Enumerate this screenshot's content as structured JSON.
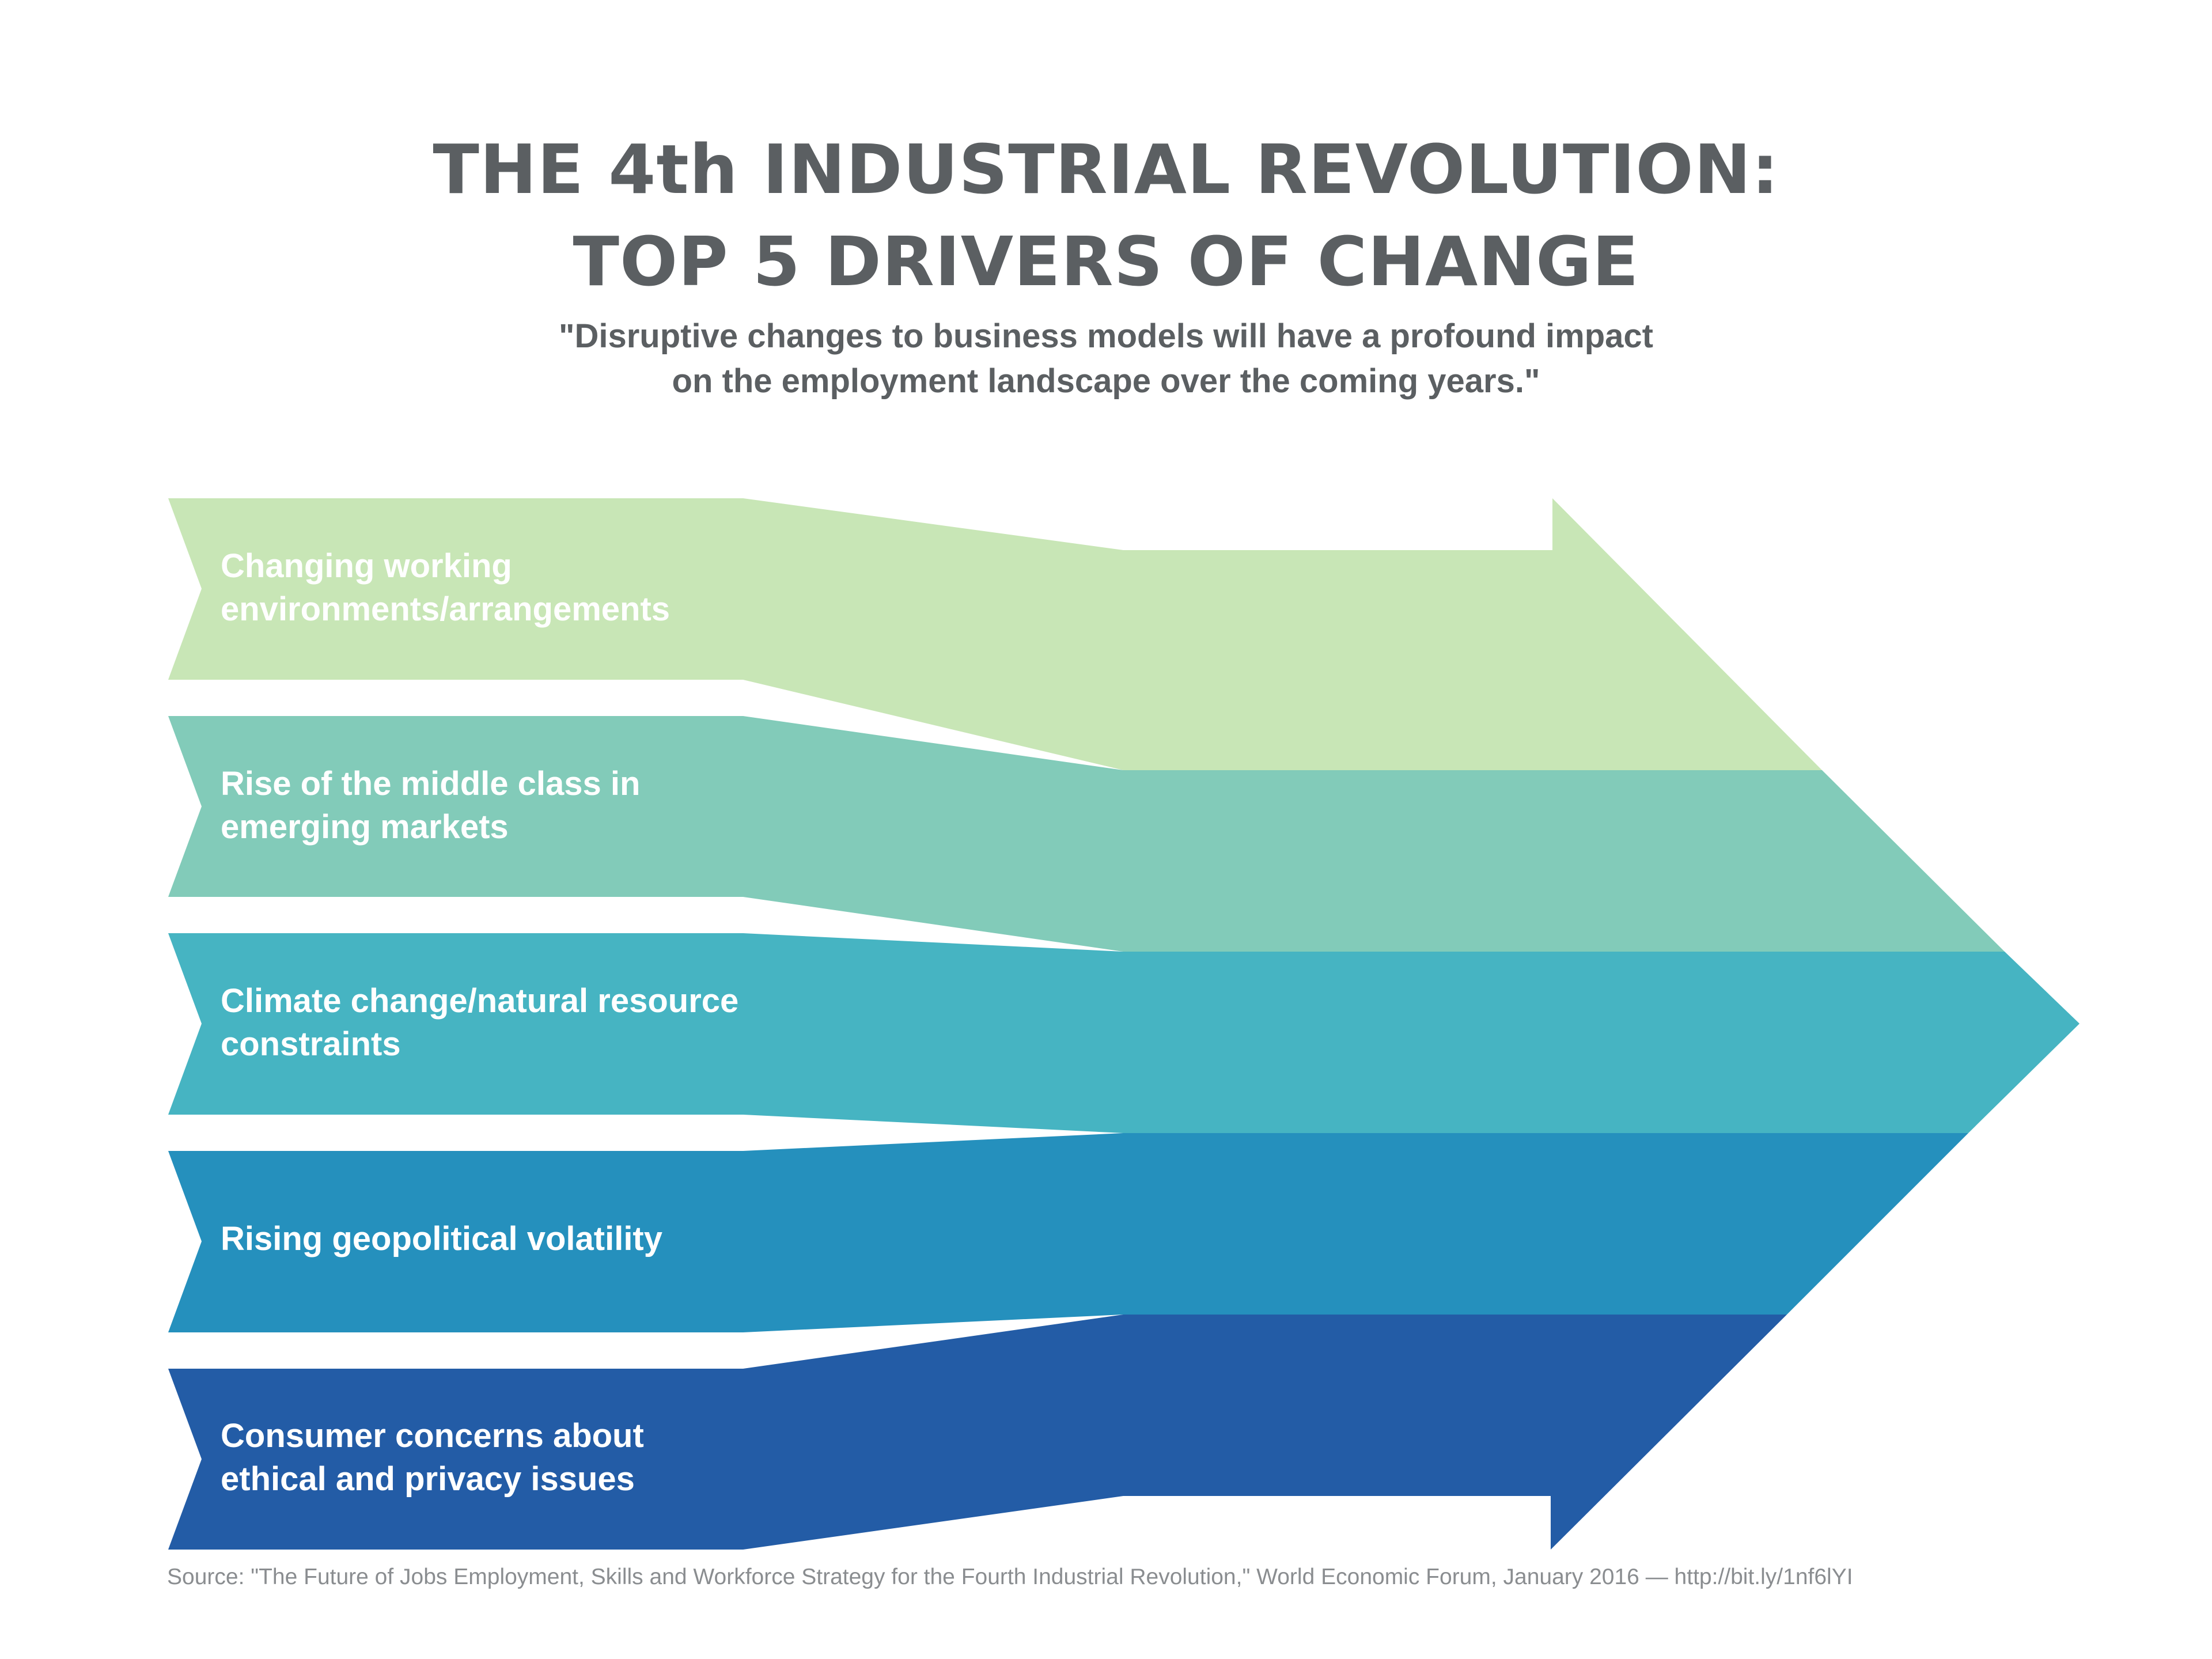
{
  "title": {
    "line1": "THE 4th INDUSTRIAL REVOLUTION:",
    "line2": "TOP 5 DRIVERS OF CHANGE"
  },
  "subtitle": {
    "line1": "\"Disruptive changes to business models will have a profound impact",
    "line2": "on the employment landscape over the coming years.\""
  },
  "drivers": [
    {
      "lines": [
        "Changing working",
        "environments/arrangements"
      ],
      "color": "#c8e6b6"
    },
    {
      "lines": [
        "Rise of the middle class in",
        "emerging markets"
      ],
      "color": "#82cbb9"
    },
    {
      "lines": [
        "Climate change/natural resource",
        "constraints"
      ],
      "color": "#46b4c2"
    },
    {
      "lines": [
        "Rising geopolitical volatility"
      ],
      "color": "#2590bd"
    },
    {
      "lines": [
        "Consumer concerns about",
        "ethical and privacy issues"
      ],
      "color": "#235ca6"
    }
  ],
  "source": "Source: \"The Future of Jobs Employment, Skills and Workforce Strategy for the Fourth Industrial Revolution,\" World Economic Forum, January 2016 — http://bit.ly/1nf6lYI"
}
